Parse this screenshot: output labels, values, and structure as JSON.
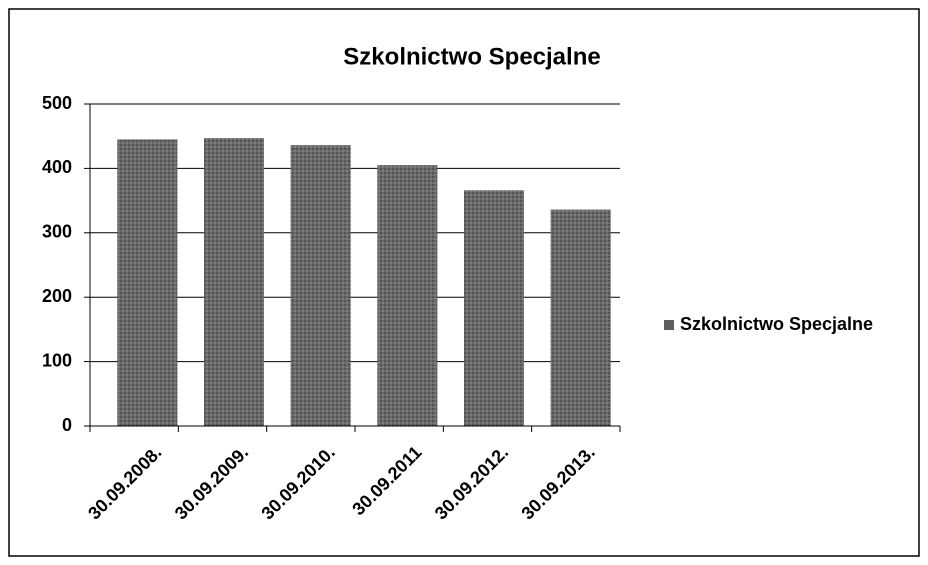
{
  "chart_data": {
    "type": "bar",
    "title": "Szkolnictwo Specjalne",
    "categories": [
      "30.09.2008.",
      "30.09.2009.",
      "30.09.2010.",
      "30.09.2011",
      "30.09.2012.",
      "30.09.2013."
    ],
    "series": [
      {
        "name": "Szkolnictwo Specjalne",
        "color": "#5e5e5e",
        "values": [
          445,
          447,
          436,
          405,
          366,
          336
        ]
      }
    ],
    "ylim": [
      0,
      500
    ],
    "yticks": [
      0,
      100,
      200,
      300,
      400,
      500
    ],
    "grid": true,
    "legend": "right"
  }
}
